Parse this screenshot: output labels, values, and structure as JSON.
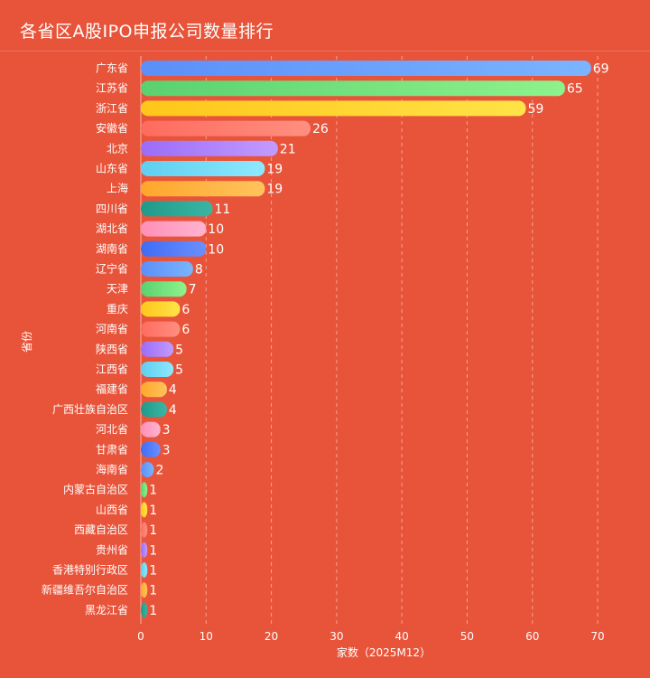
{
  "chart_data": {
    "type": "bar",
    "orientation": "horizontal",
    "title": "各省区A股IPO申报公司数量排行",
    "xlabel": "家数（2025M12）",
    "ylabel": "省份",
    "xlim": [
      0,
      70
    ],
    "x_ticks": [
      "0",
      "10",
      "20",
      "30",
      "40",
      "50",
      "60",
      "70"
    ],
    "grid": true,
    "categories": [
      "广东省",
      "江苏省",
      "浙江省",
      "安徽省",
      "北京",
      "山东省",
      "上海",
      "四川省",
      "湖北省",
      "湖南省",
      "辽宁省",
      "天津",
      "重庆",
      "河南省",
      "陕西省",
      "江西省",
      "福建省",
      "广西壮族自治区",
      "河北省",
      "甘肃省",
      "海南省",
      "内蒙古自治区",
      "山西省",
      "西藏自治区",
      "贵州省",
      "香港特别行政区",
      "新疆维吾尔自治区",
      "黑龙江省"
    ],
    "values": [
      69,
      65,
      59,
      26,
      21,
      19,
      19,
      11,
      10,
      10,
      8,
      7,
      6,
      6,
      5,
      5,
      4,
      4,
      3,
      3,
      2,
      1,
      1,
      1,
      1,
      1,
      1,
      1
    ],
    "palette": [
      [
        "#5b8ff9",
        "#7bb4ff"
      ],
      [
        "#5ad16f",
        "#8ef28c"
      ],
      [
        "#ffc61a",
        "#ffe347"
      ],
      [
        "#ff6b5e",
        "#ff8f80"
      ],
      [
        "#9b6cf7",
        "#c29bff"
      ],
      [
        "#5ecfee",
        "#8ee8ff"
      ],
      [
        "#ffa62b",
        "#ffc35c"
      ],
      [
        "#1f9a8a",
        "#3bb5a3"
      ],
      [
        "#ff8fb8",
        "#ffb3cf"
      ],
      [
        "#3f6cf5",
        "#6b8fff"
      ]
    ]
  }
}
